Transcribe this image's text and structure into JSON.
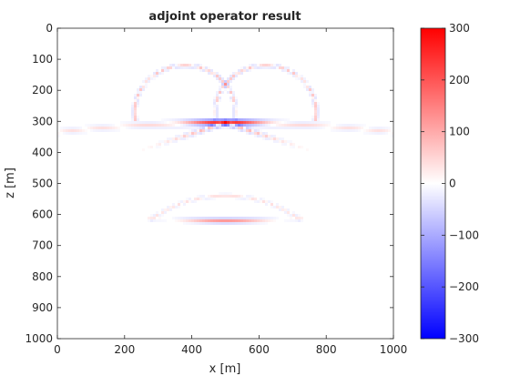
{
  "chart_data": {
    "type": "heatmap",
    "title": "adjoint operator result",
    "xlabel": "x [m]",
    "ylabel": "z [m]",
    "xlim": [
      0,
      1000
    ],
    "ylim": [
      0,
      1000
    ],
    "y_reversed": true,
    "grid": false,
    "x_ticks": [
      "0",
      "200",
      "400",
      "600",
      "800",
      "1000"
    ],
    "x_tick_values": [
      0,
      200,
      400,
      600,
      800,
      1000
    ],
    "y_ticks": [
      "0",
      "100",
      "200",
      "300",
      "400",
      "500",
      "600",
      "700",
      "800",
      "900",
      "1000"
    ],
    "y_tick_values": [
      0,
      100,
      200,
      300,
      400,
      500,
      600,
      700,
      800,
      900,
      1000
    ],
    "colorbar": {
      "range": [
        -300,
        300
      ],
      "ticks": [
        "300",
        "200",
        "100",
        "0",
        "−100",
        "−200",
        "−300"
      ],
      "tick_values": [
        300,
        200,
        100,
        0,
        -100,
        -200,
        -300
      ],
      "colormap": [
        "#0000ff",
        "#ffffff",
        "#ff0000"
      ]
    },
    "features": {
      "main_reflector": {
        "x_center": 500,
        "z_center": 305,
        "peak_amplitude": 300,
        "x_extent": [
          0,
          1000
        ]
      },
      "upper_arcs": {
        "x_center": 500,
        "x_offsets": [
          -120,
          120
        ],
        "z_top": 0,
        "z_bottom": 300
      },
      "lower_reflector": {
        "x_center": 500,
        "z_center": 620,
        "peak_amplitude": 120,
        "x_extent": [
          280,
          720
        ]
      }
    }
  }
}
